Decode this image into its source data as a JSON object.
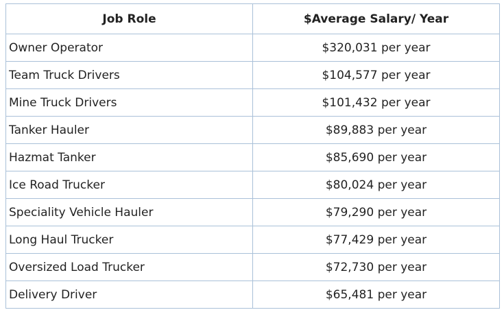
{
  "table": {
    "header": [
      "Job Role",
      "$Average Salary/ Year"
    ],
    "rows": [
      [
        "Owner Operator",
        "$320,031 per year"
      ],
      [
        "Team Truck Drivers",
        "$104,577 per year"
      ],
      [
        "Mine Truck Drivers",
        "$101,432 per year"
      ],
      [
        "Tanker Hauler",
        "$89,883 per year"
      ],
      [
        "Hazmat Tanker",
        "$85,690 per year"
      ],
      [
        "Ice Road Trucker",
        "$80,024 per year"
      ],
      [
        "Speciality Vehicle Hauler",
        "$79,290 per year"
      ],
      [
        "Long Haul Trucker",
        "$77,429 per year"
      ],
      [
        "Oversized Load Trucker",
        "$72,730 per year"
      ],
      [
        "Delivery Driver",
        "$65,481 per year"
      ]
    ]
  }
}
